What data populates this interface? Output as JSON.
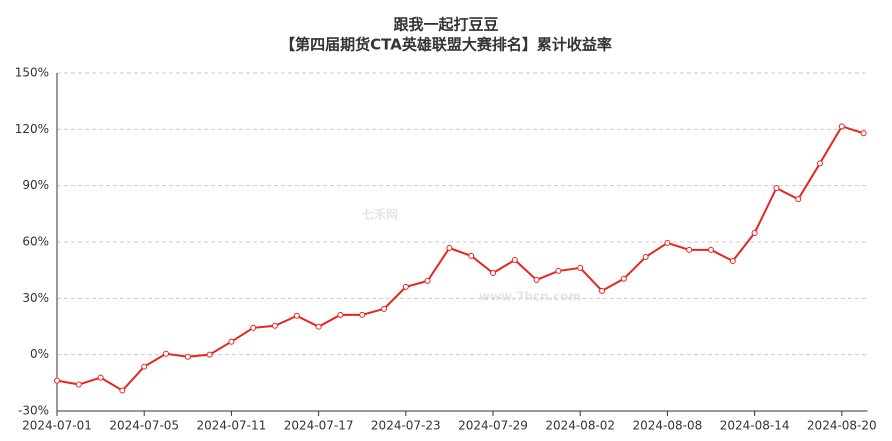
{
  "watermark": {
    "brand": "七禾网",
    "url": "www.7hcn.com"
  },
  "chart_data": {
    "type": "line",
    "title": "跟我一起打豆豆",
    "subtitle": "【第四届期货CTA英雄联盟大赛排名】累计收益率",
    "categories": [
      "2024-07-01",
      null,
      null,
      null,
      "2024-07-05",
      null,
      null,
      null,
      "2024-07-11",
      null,
      null,
      null,
      "2024-07-17",
      null,
      null,
      null,
      "2024-07-23",
      null,
      null,
      null,
      "2024-07-29",
      null,
      null,
      null,
      "2024-08-02",
      null,
      null,
      null,
      "2024-08-08",
      null,
      null,
      null,
      "2024-08-14",
      null,
      null,
      null,
      "2024-08-20",
      null
    ],
    "series": [
      {
        "name": "累计收益率",
        "color": "#e8251f",
        "values": [
          -13.8,
          -15.9,
          -12.2,
          -19.1,
          -6.4,
          0.5,
          -1.1,
          0,
          6.9,
          14.3,
          15.4,
          20.7,
          14.9,
          21.2,
          21.2,
          24.4,
          36.1,
          39.3,
          56.8,
          52.6,
          43.5,
          50.4,
          39.8,
          44.6,
          46.2,
          34.0,
          40.4,
          52.0,
          59.5,
          55.8,
          55.8,
          49.9,
          64.8,
          88.7,
          82.8,
          101.9,
          121.6,
          117.9
        ]
      }
    ],
    "ylim": [
      -30,
      150
    ],
    "yticks": [
      {
        "value": -30,
        "label": "-30%"
      },
      {
        "value": 0,
        "label": "0%"
      },
      {
        "value": 30,
        "label": "30%"
      },
      {
        "value": 60,
        "label": "60%"
      },
      {
        "value": 90,
        "label": "90%"
      },
      {
        "value": 120,
        "label": "120%"
      },
      {
        "value": 150,
        "label": "150%"
      }
    ],
    "grid": true
  }
}
